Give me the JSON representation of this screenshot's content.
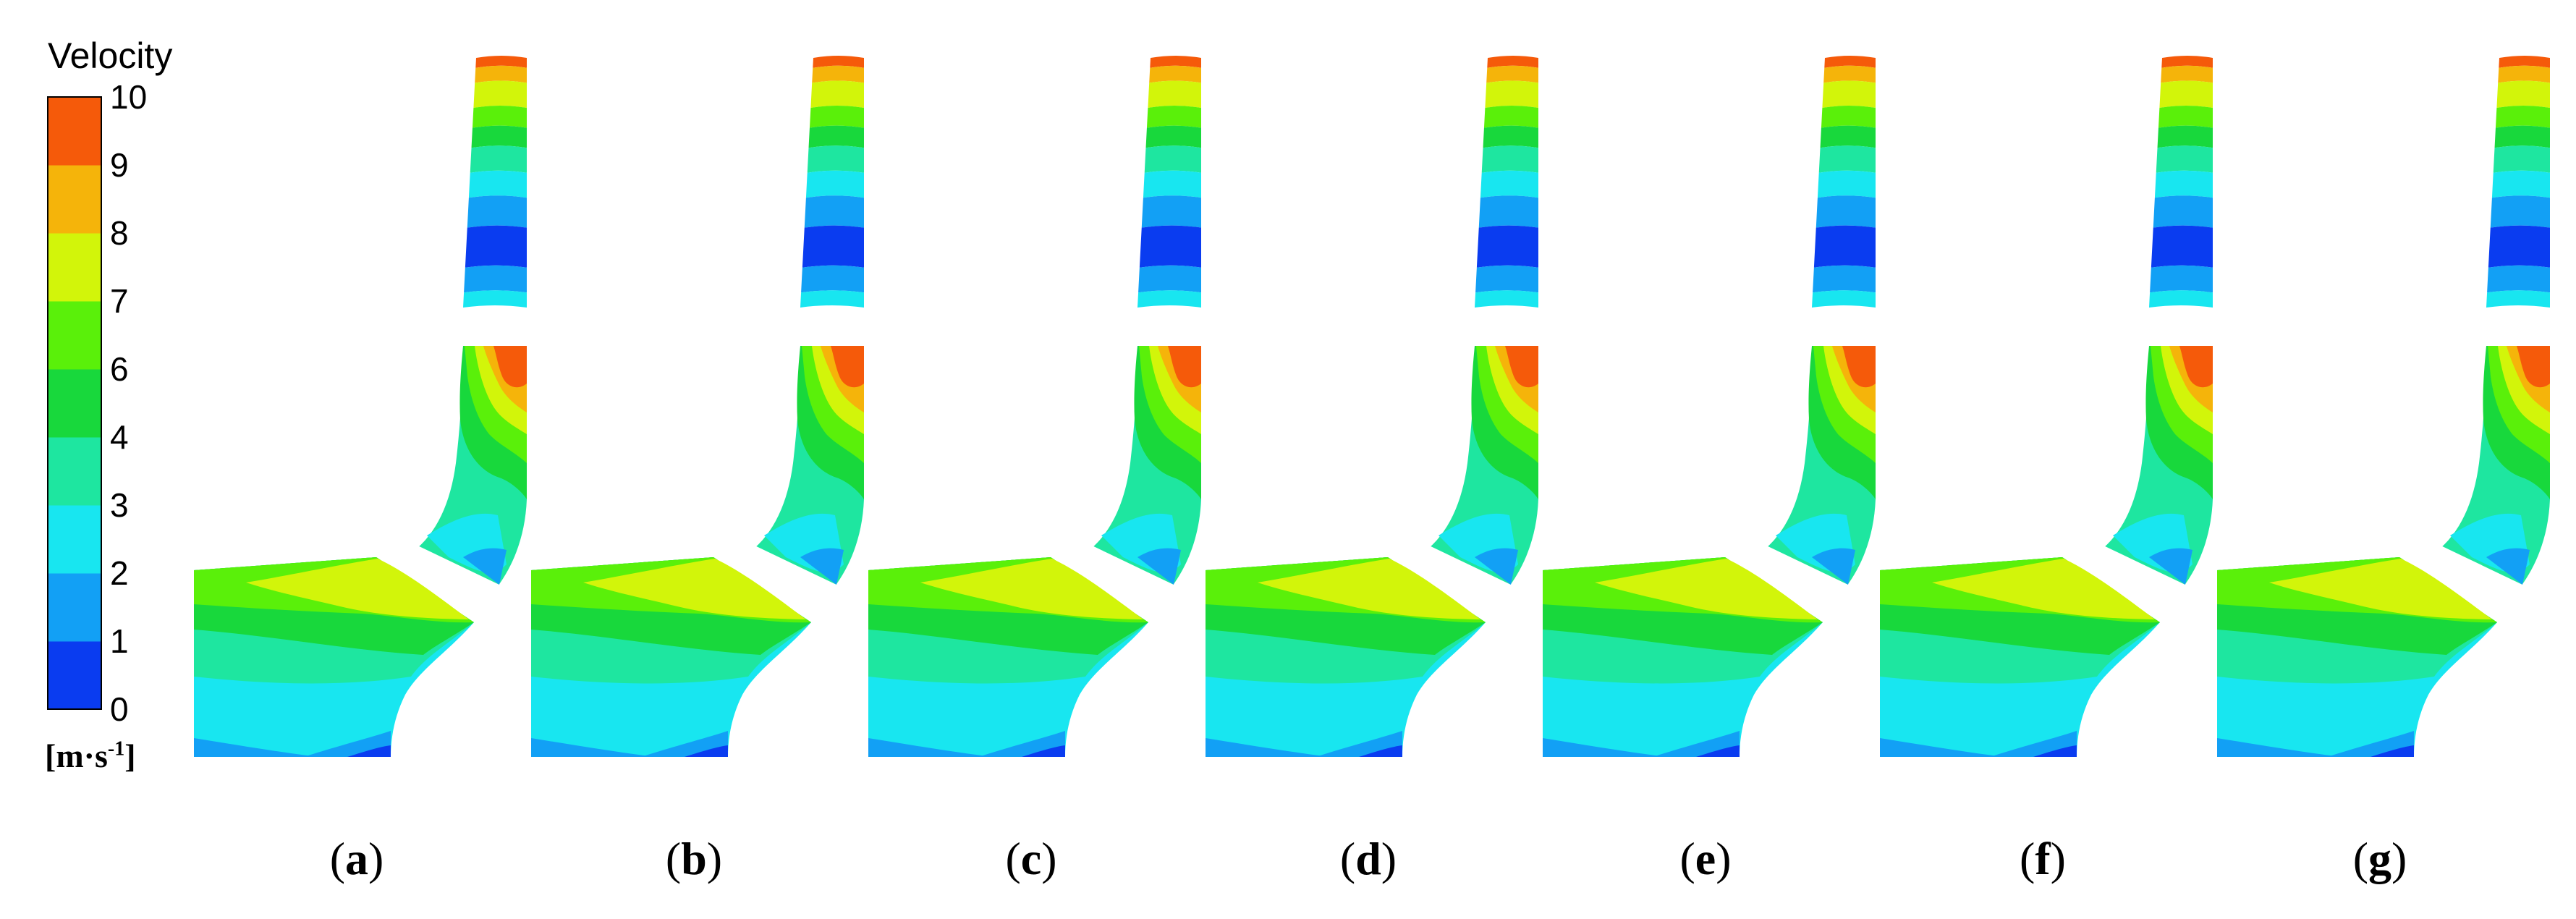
{
  "legend": {
    "title": "Velocity",
    "unit_main": "[m·s",
    "unit_sup": "-1",
    "unit_close": "]",
    "levels": [
      "0",
      "1",
      "2",
      "3",
      "4",
      "6",
      "7",
      "8",
      "9",
      "10"
    ],
    "colors": [
      "#0a3cf0",
      "#12a0f5",
      "#18e6f0",
      "#1ee6a0",
      "#18d83c",
      "#5af00a",
      "#d2f50a",
      "#f5b40a",
      "#f55a0a"
    ]
  },
  "panels": [
    {
      "label": "a"
    },
    {
      "label": "b"
    },
    {
      "label": "c"
    },
    {
      "label": "d"
    },
    {
      "label": "e"
    },
    {
      "label": "f"
    },
    {
      "label": "g"
    }
  ]
}
